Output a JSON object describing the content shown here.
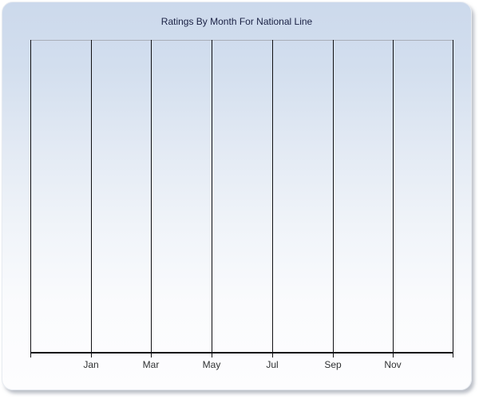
{
  "chart": {
    "title": "Ratings By Month For National Line"
  },
  "chart_data": {
    "type": "line",
    "title": "Ratings By Month For National Line",
    "x_tick_labels": [
      "Jan",
      "Mar",
      "May",
      "Jul",
      "Sep",
      "Nov"
    ],
    "y_tick_labels": [],
    "series": [],
    "plot_is_empty": true,
    "grid": "vertical-x-gridlines-only",
    "legend": "none"
  },
  "colors": {
    "page_background": "#ffffff",
    "panel_gradient_top": "#ccd9ec",
    "panel_gradient_bottom": "#fdfdfe",
    "title_text": "#1a2144",
    "tick_label": "#2f3133",
    "gridline": "#111114",
    "axis": "#111114",
    "plot_top_border": "#a9aeb8"
  }
}
